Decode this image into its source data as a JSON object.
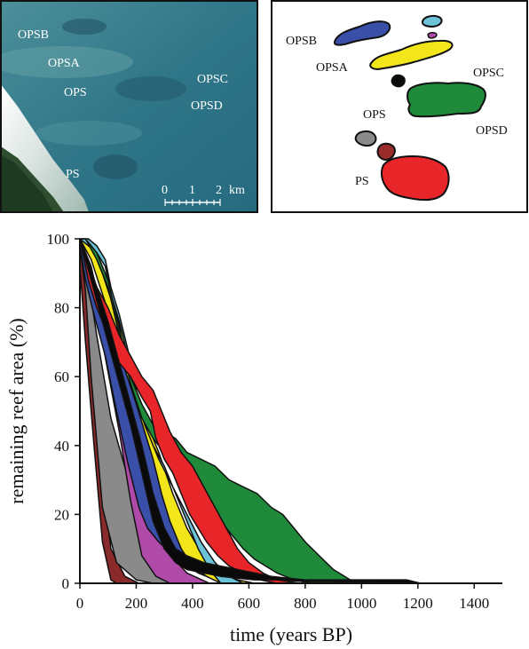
{
  "satellite_panel": {
    "labels": [
      "OPSB",
      "OPSA",
      "OPS",
      "OPSC",
      "OPSD",
      "PS"
    ],
    "scale_bar": {
      "ticks": [
        "0",
        "1",
        "2"
      ],
      "unit": "km"
    }
  },
  "map_panel": {
    "labels": [
      "OPSB",
      "OPSA",
      "OPSC",
      "OPS",
      "OPSD",
      "PS"
    ],
    "reef_colors": {
      "OPSB": "#3a4fa8",
      "OPSB_small_cyan": "#6cc3d8",
      "OPSB_small_magenta": "#b04aa8",
      "OPSA": "#f2e51a",
      "OPS": "#0a0a0a",
      "OPSC_OPSD": "#1e8a3a",
      "PS_grey": "#8a8a8a",
      "PS_brown": "#9a2b2b",
      "PS": "#e8262a"
    }
  },
  "chart_data": {
    "type": "area",
    "title": "",
    "xlabel": "time (years BP)",
    "ylabel": "remaining reef area (%)",
    "xlim": [
      0,
      1500
    ],
    "ylim": [
      0,
      100
    ],
    "xticks": [
      0,
      200,
      400,
      600,
      800,
      1000,
      1200,
      1400
    ],
    "yticks": [
      0,
      20,
      40,
      60,
      80,
      100
    ],
    "grid": false,
    "legend": "none",
    "series": [
      {
        "color": "#8a2a2a",
        "upper": [
          [
            0,
            100
          ],
          [
            30,
            80
          ],
          [
            70,
            40
          ],
          [
            110,
            10
          ],
          [
            160,
            2
          ],
          [
            210,
            0
          ]
        ],
        "lower": [
          [
            0,
            92
          ],
          [
            20,
            70
          ],
          [
            50,
            40
          ],
          [
            80,
            12
          ],
          [
            110,
            1
          ],
          [
            130,
            0
          ]
        ]
      },
      {
        "color": "#8a8a8a",
        "upper": [
          [
            0,
            100
          ],
          [
            30,
            88
          ],
          [
            60,
            72
          ],
          [
            110,
            48
          ],
          [
            180,
            28
          ],
          [
            250,
            14
          ],
          [
            330,
            4
          ],
          [
            400,
            0
          ]
        ],
        "lower": [
          [
            0,
            98
          ],
          [
            20,
            85
          ],
          [
            40,
            60
          ],
          [
            80,
            22
          ],
          [
            130,
            6
          ],
          [
            200,
            1
          ],
          [
            260,
            0
          ]
        ]
      },
      {
        "color": "#b04aa8",
        "upper": [
          [
            0,
            100
          ],
          [
            40,
            92
          ],
          [
            90,
            74
          ],
          [
            160,
            50
          ],
          [
            200,
            36
          ],
          [
            250,
            22
          ],
          [
            300,
            10
          ],
          [
            380,
            3
          ],
          [
            460,
            0
          ]
        ],
        "lower": [
          [
            0,
            100
          ],
          [
            30,
            90
          ],
          [
            80,
            70
          ],
          [
            140,
            44
          ],
          [
            180,
            24
          ],
          [
            220,
            8
          ],
          [
            270,
            2
          ],
          [
            320,
            0
          ]
        ]
      },
      {
        "color": "#3a4fa8",
        "upper": [
          [
            0,
            100
          ],
          [
            20,
            94
          ],
          [
            60,
            84
          ],
          [
            110,
            72
          ],
          [
            160,
            62
          ],
          [
            190,
            56
          ],
          [
            230,
            46
          ],
          [
            260,
            38
          ],
          [
            300,
            30
          ],
          [
            340,
            20
          ],
          [
            380,
            12
          ],
          [
            440,
            6
          ],
          [
            520,
            2
          ],
          [
            600,
            0
          ]
        ],
        "lower": [
          [
            0,
            98
          ],
          [
            20,
            88
          ],
          [
            50,
            78
          ],
          [
            90,
            66
          ],
          [
            130,
            50
          ],
          [
            170,
            35
          ],
          [
            210,
            22
          ],
          [
            240,
            16
          ],
          [
            280,
            12
          ],
          [
            320,
            9
          ],
          [
            360,
            6
          ],
          [
            420,
            3
          ],
          [
            480,
            1
          ],
          [
            530,
            0
          ]
        ]
      },
      {
        "color": "#f2e51a",
        "upper": [
          [
            0,
            100
          ],
          [
            40,
            98
          ],
          [
            80,
            90
          ],
          [
            120,
            80
          ],
          [
            160,
            70
          ],
          [
            200,
            56
          ],
          [
            240,
            46
          ],
          [
            280,
            38
          ],
          [
            330,
            26
          ],
          [
            380,
            16
          ],
          [
            430,
            9
          ],
          [
            490,
            4
          ],
          [
            560,
            1
          ],
          [
            620,
            0
          ]
        ],
        "lower": [
          [
            0,
            100
          ],
          [
            40,
            94
          ],
          [
            80,
            84
          ],
          [
            120,
            74
          ],
          [
            160,
            62
          ],
          [
            200,
            52
          ],
          [
            230,
            44
          ],
          [
            260,
            36
          ],
          [
            290,
            26
          ],
          [
            320,
            18
          ],
          [
            360,
            10
          ],
          [
            400,
            5
          ],
          [
            450,
            2
          ],
          [
            500,
            0
          ]
        ]
      },
      {
        "color": "#6cc3d8",
        "upper": [
          [
            0,
            100
          ],
          [
            30,
            100
          ],
          [
            60,
            98
          ],
          [
            90,
            94
          ],
          [
            110,
            86
          ],
          [
            140,
            78
          ],
          [
            170,
            68
          ],
          [
            200,
            54
          ],
          [
            240,
            44
          ],
          [
            280,
            36
          ],
          [
            330,
            28
          ],
          [
            380,
            20
          ],
          [
            430,
            12
          ],
          [
            480,
            6
          ],
          [
            530,
            2
          ],
          [
            580,
            0
          ]
        ],
        "lower": [
          [
            0,
            100
          ],
          [
            30,
            98
          ],
          [
            60,
            96
          ],
          [
            90,
            92
          ],
          [
            110,
            84
          ],
          [
            140,
            76
          ],
          [
            170,
            66
          ],
          [
            200,
            54
          ],
          [
            230,
            46
          ],
          [
            260,
            40
          ],
          [
            300,
            34
          ],
          [
            340,
            26
          ],
          [
            380,
            18
          ],
          [
            420,
            10
          ],
          [
            460,
            4
          ],
          [
            500,
            0
          ]
        ]
      },
      {
        "color": "#1e8a3a",
        "upper": [
          [
            0,
            100
          ],
          [
            20,
            100
          ],
          [
            60,
            96
          ],
          [
            100,
            88
          ],
          [
            140,
            74
          ],
          [
            180,
            60
          ],
          [
            220,
            52
          ],
          [
            260,
            46
          ],
          [
            300,
            44
          ],
          [
            340,
            42
          ],
          [
            380,
            38
          ],
          [
            430,
            36
          ],
          [
            480,
            34
          ],
          [
            530,
            30
          ],
          [
            580,
            28
          ],
          [
            630,
            26
          ],
          [
            680,
            22
          ],
          [
            720,
            20
          ],
          [
            760,
            16
          ],
          [
            800,
            12
          ],
          [
            850,
            8
          ],
          [
            900,
            4
          ],
          [
            960,
            1
          ],
          [
            1020,
            0
          ]
        ],
        "lower": [
          [
            0,
            100
          ],
          [
            20,
            100
          ],
          [
            60,
            94
          ],
          [
            100,
            86
          ],
          [
            140,
            72
          ],
          [
            180,
            58
          ],
          [
            220,
            48
          ],
          [
            260,
            42
          ],
          [
            300,
            38
          ],
          [
            340,
            34
          ],
          [
            380,
            30
          ],
          [
            420,
            26
          ],
          [
            460,
            22
          ],
          [
            500,
            18
          ],
          [
            540,
            14
          ],
          [
            580,
            10
          ],
          [
            620,
            7
          ],
          [
            660,
            5
          ],
          [
            700,
            3
          ],
          [
            760,
            1
          ],
          [
            820,
            0
          ]
        ]
      },
      {
        "color": "#e8262a",
        "upper": [
          [
            0,
            100
          ],
          [
            30,
            92
          ],
          [
            60,
            86
          ],
          [
            100,
            80
          ],
          [
            140,
            72
          ],
          [
            180,
            66
          ],
          [
            220,
            60
          ],
          [
            260,
            56
          ],
          [
            290,
            50
          ],
          [
            320,
            44
          ],
          [
            360,
            38
          ],
          [
            400,
            34
          ],
          [
            440,
            28
          ],
          [
            480,
            22
          ],
          [
            520,
            16
          ],
          [
            560,
            10
          ],
          [
            600,
            6
          ],
          [
            650,
            3
          ],
          [
            700,
            1
          ],
          [
            780,
            0
          ]
        ],
        "lower": [
          [
            0,
            100
          ],
          [
            30,
            88
          ],
          [
            60,
            80
          ],
          [
            100,
            72
          ],
          [
            140,
            64
          ],
          [
            180,
            60
          ],
          [
            220,
            54
          ],
          [
            250,
            50
          ],
          [
            270,
            42
          ],
          [
            300,
            36
          ],
          [
            330,
            32
          ],
          [
            360,
            26
          ],
          [
            390,
            20
          ],
          [
            420,
            16
          ],
          [
            450,
            12
          ],
          [
            490,
            8
          ],
          [
            530,
            5
          ],
          [
            580,
            3
          ],
          [
            640,
            1
          ],
          [
            700,
            0
          ]
        ]
      },
      {
        "color": "#0a0a0a",
        "upper": [
          [
            0,
            100
          ],
          [
            20,
            96
          ],
          [
            60,
            86
          ],
          [
            100,
            76
          ],
          [
            140,
            64
          ],
          [
            180,
            52
          ],
          [
            220,
            40
          ],
          [
            260,
            26
          ],
          [
            300,
            16
          ],
          [
            340,
            10
          ],
          [
            380,
            8
          ],
          [
            440,
            6
          ],
          [
            500,
            5
          ],
          [
            560,
            4
          ],
          [
            620,
            3
          ],
          [
            680,
            2
          ],
          [
            740,
            1.5
          ],
          [
            800,
            1
          ],
          [
            860,
            1
          ],
          [
            920,
            1
          ],
          [
            980,
            1
          ],
          [
            1040,
            1
          ],
          [
            1100,
            1
          ],
          [
            1160,
            1
          ],
          [
            1210,
            0
          ]
        ],
        "lower": [
          [
            0,
            100
          ],
          [
            20,
            94
          ],
          [
            60,
            82
          ],
          [
            100,
            70
          ],
          [
            140,
            58
          ],
          [
            180,
            46
          ],
          [
            220,
            32
          ],
          [
            260,
            18
          ],
          [
            300,
            10
          ],
          [
            340,
            6
          ],
          [
            380,
            4
          ],
          [
            440,
            3
          ],
          [
            500,
            2
          ],
          [
            560,
            1.5
          ],
          [
            620,
            1
          ],
          [
            700,
            1
          ],
          [
            800,
            0.5
          ],
          [
            900,
            0.5
          ],
          [
            1000,
            0.3
          ],
          [
            1100,
            0.2
          ],
          [
            1200,
            0
          ]
        ]
      }
    ]
  }
}
